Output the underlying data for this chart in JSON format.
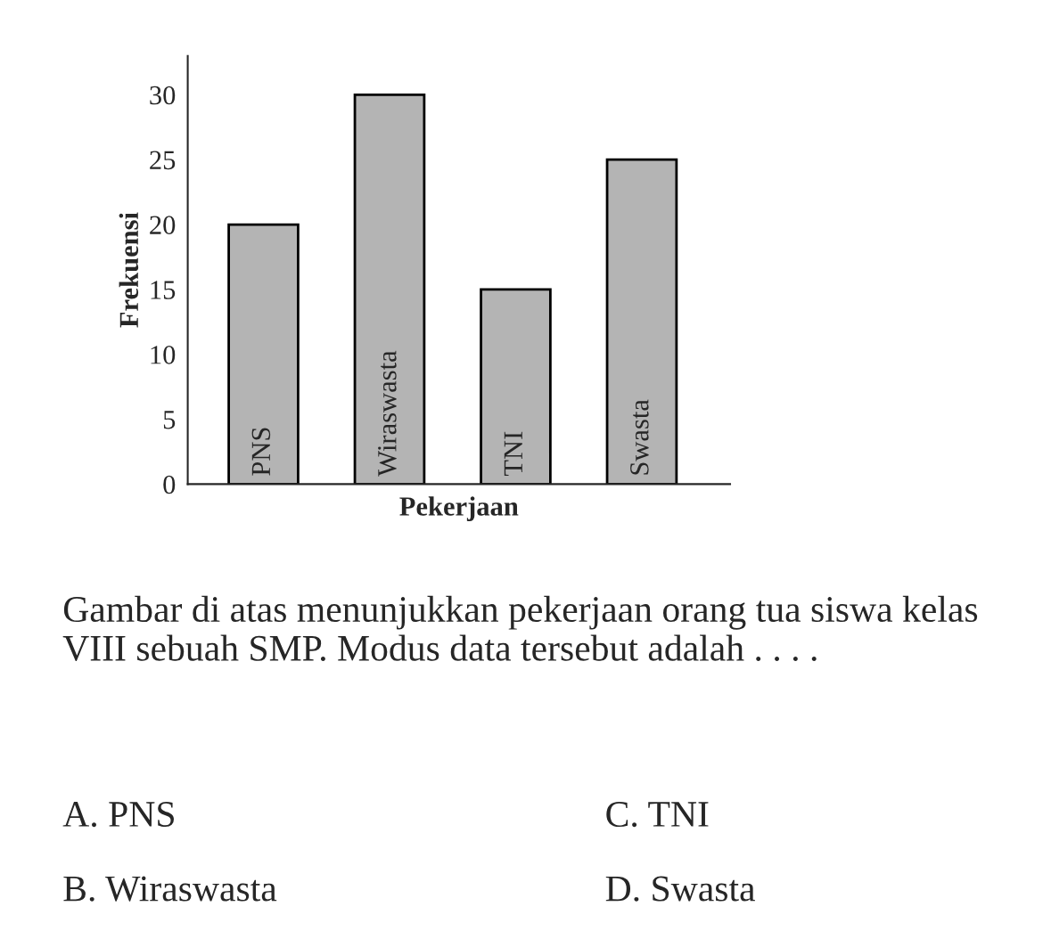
{
  "chart_data": {
    "type": "bar",
    "xlabel": "Pekerjaan",
    "ylabel": "Frekuensi",
    "categories": [
      "PNS",
      "Wiraswasta",
      "TNI",
      "Swasta"
    ],
    "values": [
      20,
      30,
      15,
      25
    ],
    "color": "#b4b4b4",
    "ylim": [
      0,
      33
    ],
    "yticks": [
      0,
      5,
      10,
      15,
      20,
      25,
      30
    ],
    "grid": false,
    "annotations": [
      "Gambar di atas menunjukkan pekerjaan orang tua siswa kelas VIII sebuah SMP. Modus data tersebut adalah . . . .",
      "A. PNS",
      "B. Wiraswasta",
      "C. TNI",
      "D. Swasta"
    ]
  }
}
